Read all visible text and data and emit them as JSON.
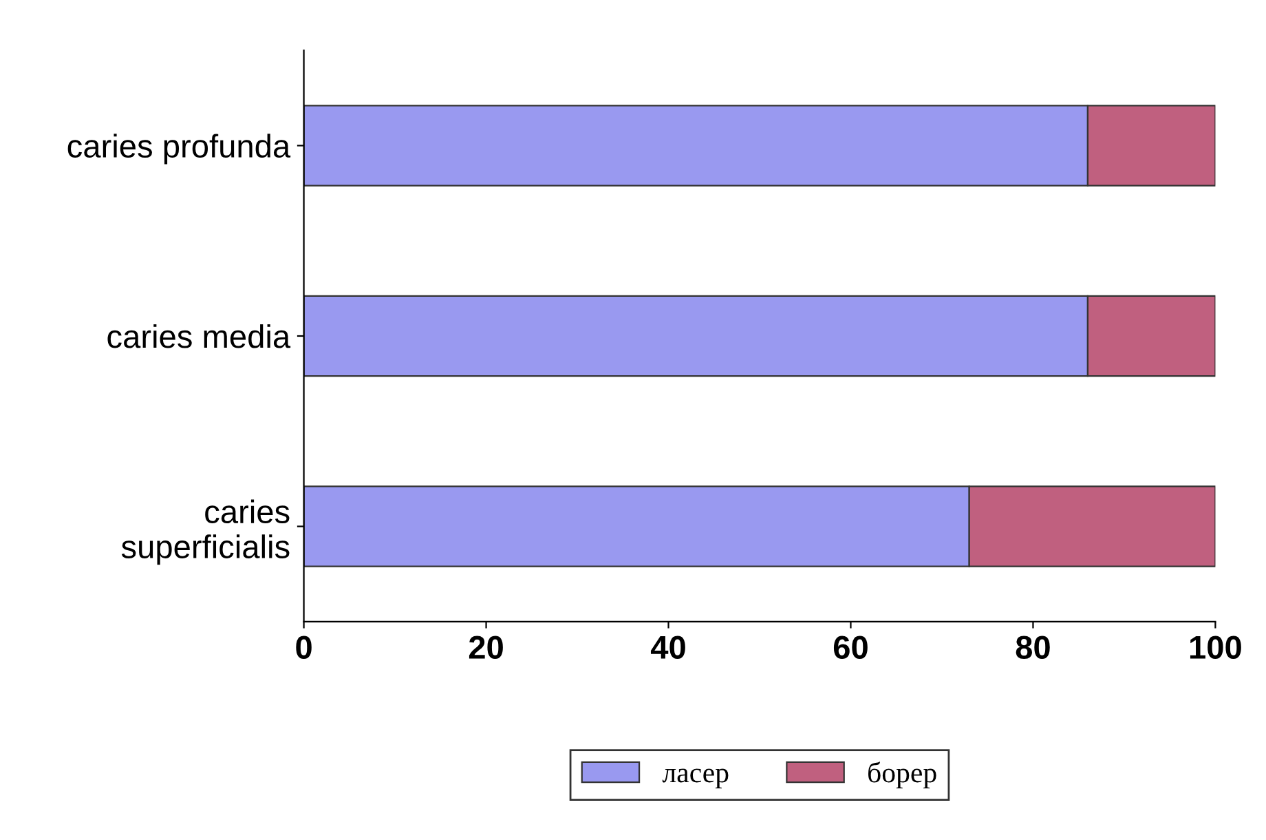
{
  "chart_data": {
    "type": "bar",
    "orientation": "horizontal",
    "stacked": true,
    "categories": [
      "caries profunda",
      "caries media",
      "caries\nsuperficialis"
    ],
    "series": [
      {
        "name": "ласер",
        "color": "#9999f0",
        "values": [
          86,
          86,
          73
        ]
      },
      {
        "name": "борер",
        "color": "#c0607f",
        "values": [
          14,
          14,
          27
        ]
      }
    ],
    "xlim": [
      0,
      100
    ],
    "xticks": [
      0,
      20,
      40,
      60,
      80,
      100
    ],
    "grid": false,
    "legend": "bottom"
  }
}
